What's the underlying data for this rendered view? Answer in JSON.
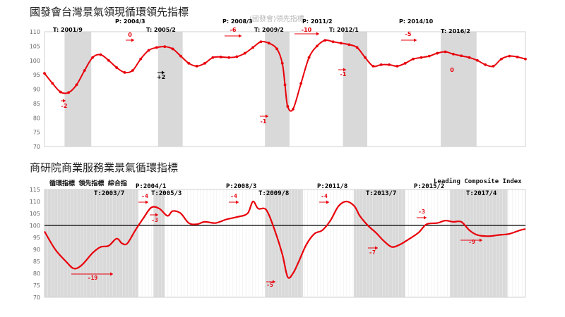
{
  "charts": [
    {
      "title": "國發會台灣景氣領現循環領先指標",
      "subtitle": "(國發會)領先指標"
    },
    {
      "title": "商研院商業服務業景氣循環指標",
      "top_left_label": "循環指標  領先指標  綜合指",
      "top_right_label": "Leading Composite Index"
    }
  ],
  "colors": {
    "line": "#e8000b",
    "shade": "#d9d9d9",
    "axis": "#d0d0d0",
    "reference": "#000000"
  },
  "chart_data": [
    {
      "type": "line",
      "title": "國發會台灣景氣領現循環領先指標",
      "ylim": [
        70,
        110
      ],
      "yticks": [
        70,
        75,
        80,
        85,
        90,
        95,
        100,
        105,
        110
      ],
      "xlim": [
        2000.0,
        2018.0
      ],
      "grid": false,
      "shaded_periods": [
        [
          2000.75,
          2001.75
        ],
        [
          2004.25,
          2005.17
        ],
        [
          2008.25,
          2009.17
        ],
        [
          2011.17,
          2012.08
        ],
        [
          2014.83,
          2016.17
        ]
      ],
      "series": [
        {
          "markers": true,
          "x": [
            2000.0,
            2000.3,
            2000.6,
            2000.9,
            2001.2,
            2001.5,
            2001.8,
            2002.1,
            2002.4,
            2002.7,
            2003.0,
            2003.3,
            2003.6,
            2003.9,
            2004.2,
            2004.5,
            2004.8,
            2005.1,
            2005.4,
            2005.7,
            2006.0,
            2006.3,
            2006.6,
            2006.9,
            2007.2,
            2007.5,
            2007.8,
            2008.1,
            2008.4,
            2008.7,
            2008.9,
            2009.0,
            2009.1,
            2009.3,
            2009.6,
            2009.9,
            2010.2,
            2010.5,
            2010.8,
            2011.1,
            2011.4,
            2011.7,
            2012.0,
            2012.3,
            2012.6,
            2012.9,
            2013.2,
            2013.5,
            2013.8,
            2014.1,
            2014.4,
            2014.7,
            2015.0,
            2015.3,
            2015.6,
            2015.9,
            2016.2,
            2016.5,
            2016.8,
            2017.1,
            2017.4,
            2017.7,
            2018.0
          ],
          "y": [
            95.5,
            92.0,
            89.0,
            88.8,
            91.5,
            96.5,
            101.0,
            102.0,
            100.0,
            97.5,
            95.8,
            96.5,
            100.5,
            103.5,
            104.5,
            104.8,
            104.0,
            101.5,
            99.0,
            98.0,
            99.0,
            101.0,
            101.2,
            101.0,
            101.3,
            102.5,
            104.5,
            106.5,
            106.0,
            104.0,
            99.0,
            91.5,
            84.0,
            83.0,
            92.0,
            101.0,
            105.0,
            107.0,
            106.5,
            106.0,
            105.5,
            104.5,
            101.0,
            98.0,
            98.5,
            98.5,
            98.0,
            99.0,
            100.5,
            101.0,
            101.5,
            102.5,
            103.0,
            102.2,
            101.6,
            101.0,
            100.0,
            98.5,
            98.0,
            100.5,
            101.5,
            101.2,
            100.5
          ]
        }
      ],
      "annotations": [
        {
          "text": "T: 2001/9",
          "color": "#000000"
        },
        {
          "text": "P: 2004/3",
          "color": "#000000"
        },
        {
          "text": "T: 2005/2",
          "color": "#000000"
        },
        {
          "text": "P: 2008/3",
          "color": "#000000"
        },
        {
          "text": "T: 2009/2",
          "color": "#000000"
        },
        {
          "text": "P: 2011/2",
          "color": "#000000"
        },
        {
          "text": "T: 2012/1",
          "color": "#000000"
        },
        {
          "text": "P: 2014/10",
          "color": "#000000"
        },
        {
          "text": "T: 2016/2",
          "color": "#000000"
        },
        {
          "text": "-2",
          "color": "#e8000b"
        },
        {
          "text": "0",
          "color": "#e8000b"
        },
        {
          "text": "+2",
          "color": "#000000"
        },
        {
          "text": "-6",
          "color": "#e8000b"
        },
        {
          "text": "-1",
          "color": "#e8000b"
        },
        {
          "text": "-10",
          "color": "#e8000b"
        },
        {
          "text": "-1",
          "color": "#e8000b"
        },
        {
          "text": "-5",
          "color": "#e8000b"
        },
        {
          "text": "0",
          "color": "#e8000b"
        }
      ]
    },
    {
      "type": "line",
      "title": "商研院商業服務業景氣循環指標",
      "ylim": [
        70,
        115
      ],
      "yticks": [
        70,
        75,
        80,
        85,
        90,
        95,
        100,
        105,
        110,
        115
      ],
      "reference_line": 100,
      "xlim": [
        2000.0,
        2018.0
      ],
      "grid": true,
      "shaded_periods": [
        [
          2000.0,
          2003.5
        ],
        [
          2004.08,
          2004.5
        ],
        [
          2008.25,
          2009.67
        ],
        [
          2011.58,
          2013.5
        ],
        [
          2015.17,
          2017.33
        ]
      ],
      "series": [
        {
          "markers": false,
          "x": [
            2000.0,
            2000.4,
            2000.8,
            2001.1,
            2001.4,
            2001.8,
            2002.1,
            2002.4,
            2002.7,
            2002.9,
            2003.1,
            2003.4,
            2003.7,
            2004.0,
            2004.3,
            2004.6,
            2004.8,
            2005.1,
            2005.4,
            2005.7,
            2006.0,
            2006.4,
            2006.8,
            2007.2,
            2007.6,
            2007.8,
            2008.0,
            2008.3,
            2008.6,
            2008.9,
            2009.1,
            2009.3,
            2009.5,
            2009.8,
            2010.1,
            2010.4,
            2010.7,
            2011.0,
            2011.3,
            2011.6,
            2011.8,
            2012.1,
            2012.4,
            2012.7,
            2013.0,
            2013.3,
            2013.6,
            2014.0,
            2014.3,
            2014.7,
            2015.0,
            2015.3,
            2015.6,
            2015.9,
            2016.2,
            2016.6,
            2017.0,
            2017.4,
            2017.8,
            2018.0
          ],
          "y": [
            97.5,
            90.0,
            85.0,
            82.0,
            83.5,
            88.5,
            91.0,
            91.5,
            94.5,
            92.5,
            92.5,
            98.0,
            103.0,
            107.5,
            107.0,
            104.0,
            106.0,
            105.0,
            101.0,
            100.5,
            101.5,
            101.0,
            102.5,
            103.5,
            105.0,
            110.0,
            107.0,
            106.5,
            98.5,
            88.0,
            78.5,
            80.0,
            84.5,
            92.0,
            96.5,
            98.0,
            102.0,
            108.0,
            110.0,
            108.0,
            104.0,
            100.0,
            97.0,
            93.5,
            91.0,
            92.0,
            94.0,
            97.0,
            100.5,
            101.0,
            102.0,
            101.5,
            101.5,
            98.0,
            96.0,
            95.5,
            96.0,
            96.5,
            98.0,
            98.5
          ]
        }
      ],
      "annotations": [
        {
          "text": "T:2003/7",
          "color": "#000000"
        },
        {
          "text": "P:2004/1",
          "color": "#000000"
        },
        {
          "text": "T:2005/3",
          "color": "#000000"
        },
        {
          "text": "P:2008/3",
          "color": "#000000"
        },
        {
          "text": "T:2009/8",
          "color": "#000000"
        },
        {
          "text": "P:2011/8",
          "color": "#000000"
        },
        {
          "text": "T:2013/7",
          "color": "#000000"
        },
        {
          "text": "P:2015/2",
          "color": "#000000"
        },
        {
          "text": "T:2017/4",
          "color": "#000000"
        },
        {
          "text": "-19",
          "color": "#e8000b"
        },
        {
          "text": "-4",
          "color": "#e8000b"
        },
        {
          "text": "-3",
          "color": "#e8000b"
        },
        {
          "text": "-4",
          "color": "#e8000b"
        },
        {
          "text": "-5",
          "color": "#e8000b"
        },
        {
          "text": "-4",
          "color": "#e8000b"
        },
        {
          "text": "-7",
          "color": "#e8000b"
        },
        {
          "text": "-3",
          "color": "#e8000b"
        },
        {
          "text": "-9",
          "color": "#e8000b"
        }
      ]
    }
  ]
}
